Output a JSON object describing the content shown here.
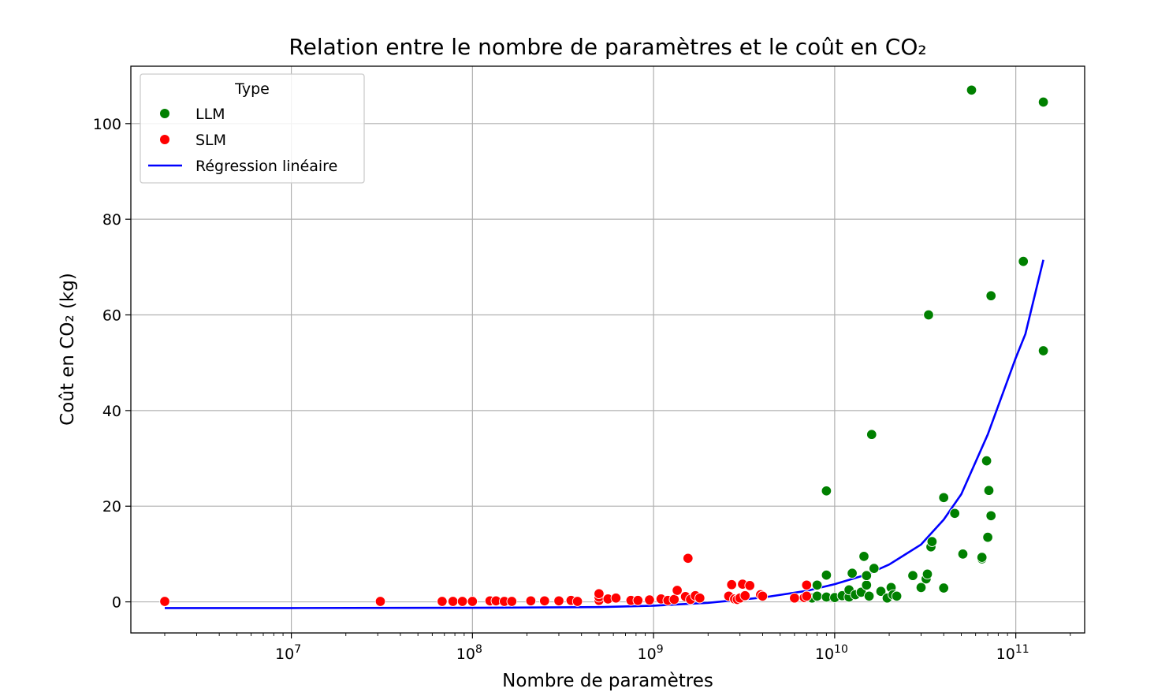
{
  "chart_data": {
    "type": "scatter",
    "title": "Relation entre le nombre de paramètres et le coût en CO₂",
    "xlabel": "Nombre de paramètres",
    "ylabel": "Coût en CO₂ (kg)",
    "x_scale": "log",
    "xlim": [
      1300000,
      240000000000
    ],
    "ylim": [
      -6.5,
      112
    ],
    "x_ticks": [
      {
        "value": 10000000,
        "base": "10",
        "exp": "7"
      },
      {
        "value": 100000000,
        "base": "10",
        "exp": "8"
      },
      {
        "value": 1000000000,
        "base": "10",
        "exp": "9"
      },
      {
        "value": 10000000000,
        "base": "10",
        "exp": "10"
      },
      {
        "value": 100000000000,
        "base": "10",
        "exp": "11"
      }
    ],
    "y_ticks": [
      0,
      20,
      40,
      60,
      80,
      100
    ],
    "grid": true,
    "legend": {
      "title": "Type",
      "placement": "top-left",
      "entries": [
        "LLM",
        "SLM",
        "Régression linéaire"
      ]
    },
    "colors": {
      "LLM": "#008000",
      "SLM": "#ff0000",
      "regression": "#0000ff"
    },
    "series": [
      {
        "name": "LLM",
        "kind": "scatter",
        "points": [
          [
            7500000000.0,
            0.8
          ],
          [
            8000000000.0,
            1.2
          ],
          [
            8000000000.0,
            3.5
          ],
          [
            9000000000.0,
            1.0
          ],
          [
            9000000000.0,
            5.6
          ],
          [
            9000000000.0,
            23.2
          ],
          [
            10000000000.0,
            0.9
          ],
          [
            11000000000.0,
            1.3
          ],
          [
            12000000000.0,
            1.0
          ],
          [
            12000000000.0,
            2.5
          ],
          [
            12500000000.0,
            6.0
          ],
          [
            13000000000.0,
            1.5
          ],
          [
            14000000000.0,
            2.0
          ],
          [
            14500000000.0,
            9.5
          ],
          [
            15000000000.0,
            3.5
          ],
          [
            15000000000.0,
            5.5
          ],
          [
            15500000000.0,
            1.2
          ],
          [
            16000000000.0,
            35.0
          ],
          [
            16500000000.0,
            7.0
          ],
          [
            18000000000.0,
            2.2
          ],
          [
            19500000000.0,
            0.8
          ],
          [
            20500000000.0,
            3.0
          ],
          [
            21000000000.0,
            1.5
          ],
          [
            22000000000.0,
            1.2
          ],
          [
            27000000000.0,
            5.5
          ],
          [
            30000000000.0,
            3.0
          ],
          [
            32000000000.0,
            4.8
          ],
          [
            32500000000.0,
            5.8
          ],
          [
            33000000000.0,
            60.0
          ],
          [
            34000000000.0,
            11.5
          ],
          [
            34500000000.0,
            12.6
          ],
          [
            40000000000.0,
            2.9
          ],
          [
            40000000000.0,
            21.8
          ],
          [
            46000000000.0,
            18.5
          ],
          [
            51000000000.0,
            10.0
          ],
          [
            57000000000.0,
            107.0
          ],
          [
            65000000000.0,
            9.0
          ],
          [
            65000000000.0,
            9.3
          ],
          [
            69000000000.0,
            29.5
          ],
          [
            70000000000.0,
            13.5
          ],
          [
            71000000000.0,
            23.3
          ],
          [
            73000000000.0,
            64.0
          ],
          [
            73000000000.0,
            18.0
          ],
          [
            110000000000.0,
            71.2
          ],
          [
            142000000000.0,
            104.5
          ],
          [
            142000000000.0,
            52.5
          ]
        ]
      },
      {
        "name": "SLM",
        "kind": "scatter",
        "points": [
          [
            2000000.0,
            0.1
          ],
          [
            31000000.0,
            0.1
          ],
          [
            68000000.0,
            0.1
          ],
          [
            78000000.0,
            0.1
          ],
          [
            88000000.0,
            0.1
          ],
          [
            100000000.0,
            0.1
          ],
          [
            125000000.0,
            0.2
          ],
          [
            135000000.0,
            0.2
          ],
          [
            150000000.0,
            0.1
          ],
          [
            165000000.0,
            0.1
          ],
          [
            210000000.0,
            0.2
          ],
          [
            250000000.0,
            0.2
          ],
          [
            300000000.0,
            0.2
          ],
          [
            350000000.0,
            0.3
          ],
          [
            380000000.0,
            0.1
          ],
          [
            500000000.0,
            0.3
          ],
          [
            500000000.0,
            1.0
          ],
          [
            500000000.0,
            1.7
          ],
          [
            560000000.0,
            0.6
          ],
          [
            620000000.0,
            0.8
          ],
          [
            750000000.0,
            0.3
          ],
          [
            820000000.0,
            0.3
          ],
          [
            950000000.0,
            0.4
          ],
          [
            1100000000.0,
            0.6
          ],
          [
            1200000000.0,
            0.3
          ],
          [
            1300000000.0,
            0.5
          ],
          [
            1350000000.0,
            2.4
          ],
          [
            1500000000.0,
            1.1
          ],
          [
            1550000000.0,
            9.1
          ],
          [
            1600000000.0,
            0.5
          ],
          [
            1700000000.0,
            1.3
          ],
          [
            1800000000.0,
            0.8
          ],
          [
            2600000000.0,
            1.2
          ],
          [
            2700000000.0,
            3.6
          ],
          [
            2800000000.0,
            0.6
          ],
          [
            2900000000.0,
            0.5
          ],
          [
            3000000000.0,
            0.8
          ],
          [
            3100000000.0,
            3.7
          ],
          [
            3200000000.0,
            1.3
          ],
          [
            3400000000.0,
            3.4
          ],
          [
            3900000000.0,
            1.5
          ],
          [
            4000000000.0,
            1.2
          ],
          [
            6000000000.0,
            0.8
          ],
          [
            6800000000.0,
            0.9
          ],
          [
            7000000000.0,
            3.5
          ],
          [
            7000000000.0,
            1.2
          ]
        ]
      },
      {
        "name": "Régression linéaire",
        "kind": "line",
        "points": [
          [
            2000000.0,
            -1.3
          ],
          [
            10000000.0,
            -1.3
          ],
          [
            100000000.0,
            -1.25
          ],
          [
            500000000.0,
            -1.1
          ],
          [
            1000000000.0,
            -0.8
          ],
          [
            2000000000.0,
            -0.2
          ],
          [
            4000000000.0,
            0.9
          ],
          [
            7000000000.0,
            2.3
          ],
          [
            10000000000.0,
            3.7
          ],
          [
            15000000000.0,
            5.7
          ],
          [
            20000000000.0,
            7.8
          ],
          [
            30000000000.0,
            12.0
          ],
          [
            40000000000.0,
            17.2
          ],
          [
            50000000000.0,
            22.5
          ],
          [
            70000000000.0,
            35.0
          ],
          [
            100000000000.0,
            51.0
          ],
          [
            113000000000.0,
            56.0
          ],
          [
            142000000000.0,
            71.5
          ]
        ]
      }
    ]
  }
}
